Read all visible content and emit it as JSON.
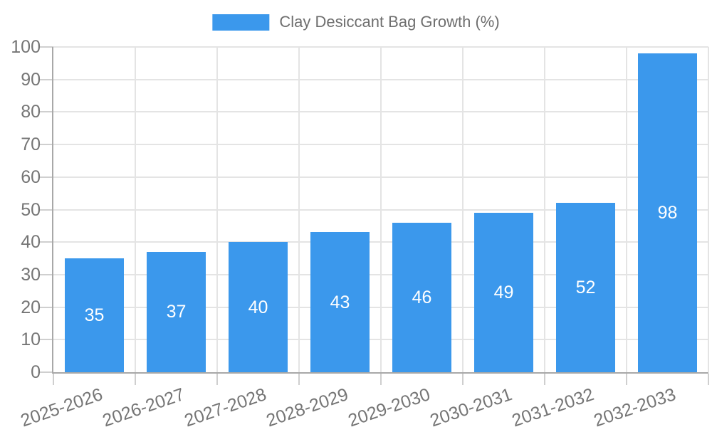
{
  "legend": {
    "label": "Clay Desiccant Bag Growth (%)"
  },
  "chart_data": {
    "type": "bar",
    "title": "Clay Desiccant Bag Growth (%)",
    "series_name": "Clay Desiccant Bag Growth (%)",
    "categories": [
      "2025-2026",
      "2026-2027",
      "2027-2028",
      "2028-2029",
      "2029-2030",
      "2030-2031",
      "2031-2032",
      "2032-2033"
    ],
    "values": [
      35,
      37,
      40,
      43,
      46,
      49,
      52,
      98
    ],
    "xlabel": "",
    "ylabel": "",
    "ylim": [
      0,
      100
    ],
    "ytick_step": 10,
    "ytick_labels": [
      "0",
      "10",
      "20",
      "30",
      "40",
      "50",
      "60",
      "70",
      "80",
      "90",
      "100"
    ],
    "grid": true,
    "legend_position": "top-center",
    "value_labels": "inside-center",
    "x_label_rotation_deg": -19
  },
  "colors": {
    "background": "#FFFFFF",
    "bar": "#3B98EC",
    "grid": "#E4E4E4",
    "axis": "#A8A8A8",
    "tick": "#CFCFCF",
    "tick_text": "#757575",
    "legend_text": "#6E6E6E",
    "value_text": "#FFFFFF"
  }
}
